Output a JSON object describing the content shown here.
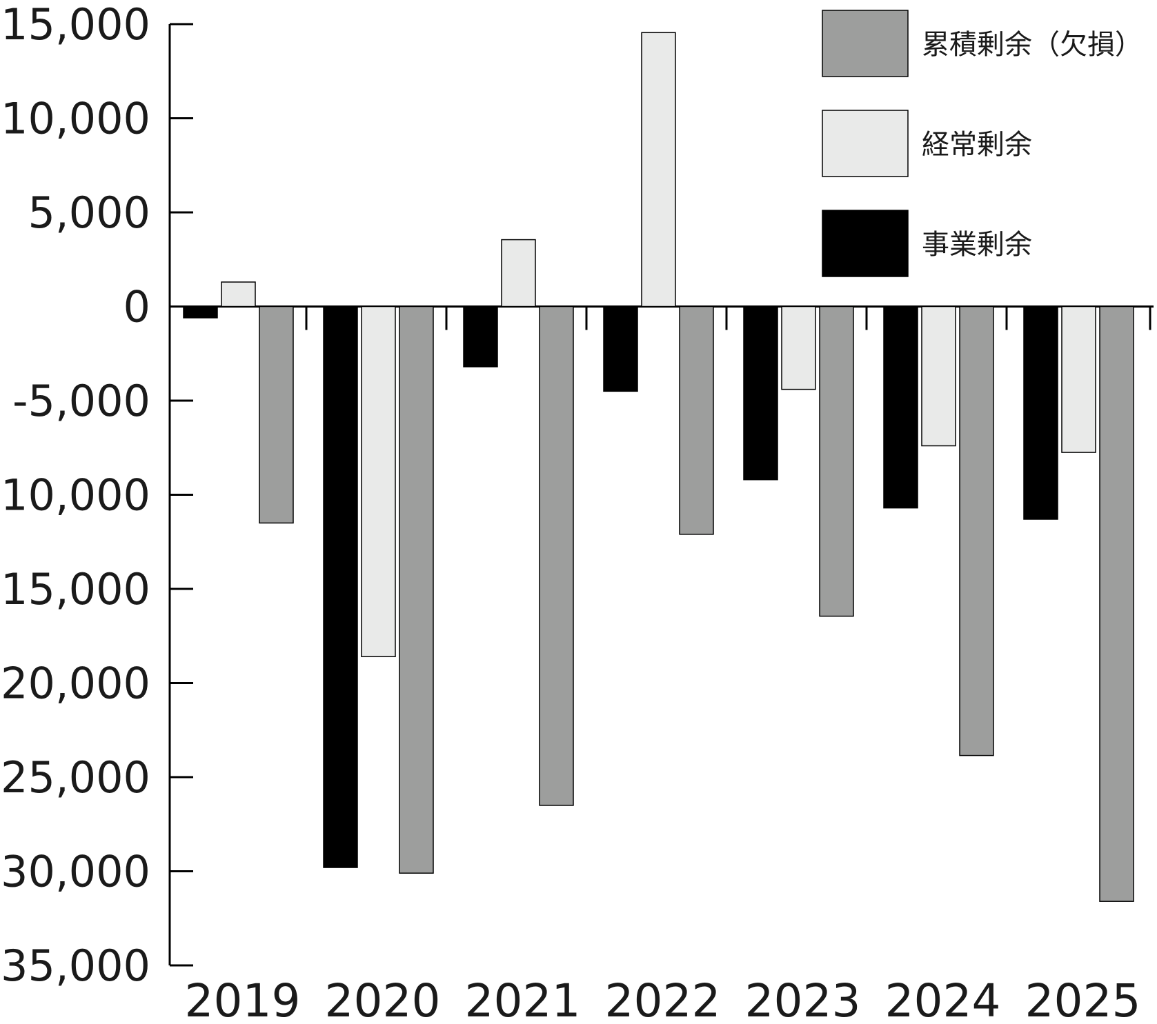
{
  "chart_data": {
    "type": "bar",
    "categories": [
      "2019",
      "2020",
      "2021",
      "2022",
      "2023",
      "2024",
      "2025"
    ],
    "series": [
      {
        "name": "事業剰余",
        "color": "#000000",
        "values": [
          -600,
          -29800,
          -3200,
          -4500,
          -9200,
          -10700,
          -11300
        ]
      },
      {
        "name": "経常剰余",
        "color": "#e9eae9",
        "values": [
          1300,
          -18600,
          3550,
          14550,
          -4400,
          -7400,
          -7750
        ]
      },
      {
        "name": "累積剰余（欠損）",
        "color": "#9d9e9d",
        "values": [
          -11500,
          -30100,
          -26500,
          -12100,
          -16450,
          -23850,
          -31600
        ]
      }
    ],
    "yticks": [
      "15,000",
      "10,000",
      "5,000",
      "0",
      "-5,000",
      "-10,000",
      "-15,000",
      "-20,000",
      "-25,000",
      "-30,000",
      "-35,000"
    ],
    "ylim": [
      -35000,
      15000
    ],
    "grid": false,
    "legend_position": "top-right",
    "legend_order": [
      "累積剰余（欠損）",
      "経常剰余",
      "事業剰余"
    ]
  }
}
